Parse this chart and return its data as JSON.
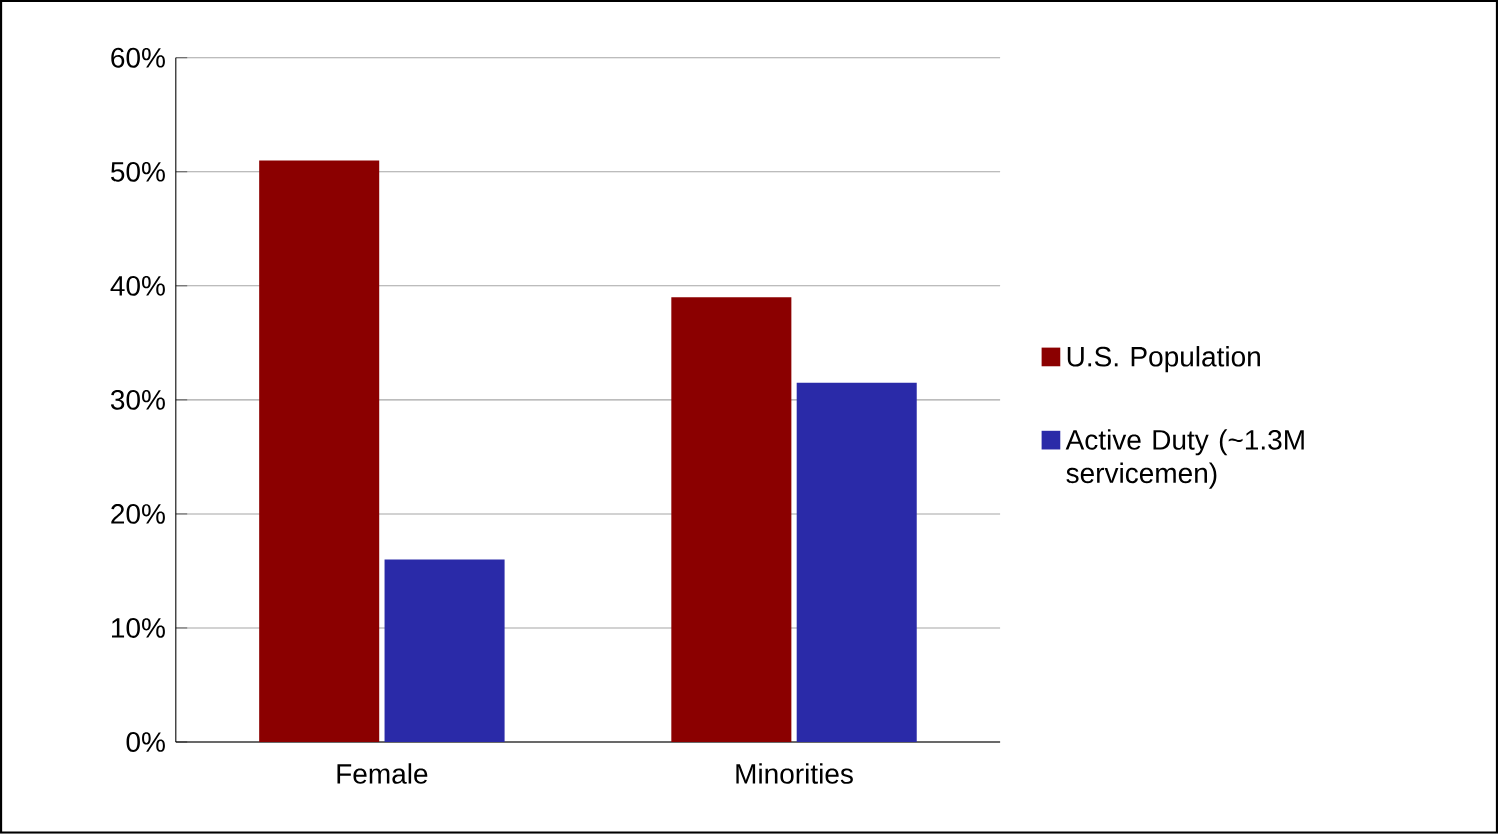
{
  "chart_data": {
    "type": "bar",
    "categories": [
      "Female",
      "Minorities"
    ],
    "series": [
      {
        "name": "U.S. Population",
        "color": "#8b0000",
        "values": [
          51,
          39
        ]
      },
      {
        "name": "Active Duty (~1.3M servicemen)",
        "color": "#2a2aa8",
        "values": [
          16,
          31.5
        ]
      }
    ],
    "ylim": [
      0,
      60
    ],
    "yticks": [
      {
        "value": 0,
        "label": "0%"
      },
      {
        "value": 10,
        "label": "10%"
      },
      {
        "value": 20,
        "label": "20%"
      },
      {
        "value": 30,
        "label": "30%"
      },
      {
        "value": 40,
        "label": "40%"
      },
      {
        "value": 50,
        "label": "50%"
      },
      {
        "value": 60,
        "label": "60%"
      }
    ],
    "grid": "y",
    "legend": "right"
  }
}
